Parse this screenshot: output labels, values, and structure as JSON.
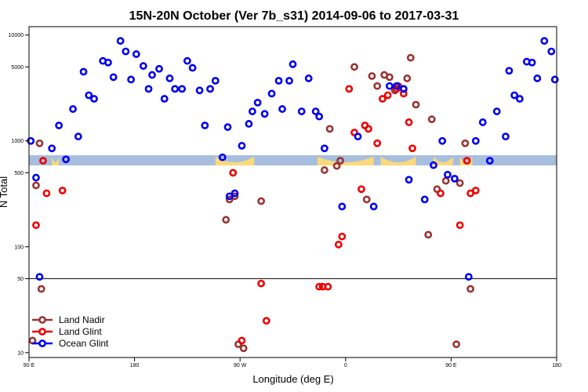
{
  "chart_data": {
    "type": "scatter",
    "title": "15N-20N October (Ver 7b_s31)   2014-09-06 to 2017-03-31",
    "xlabel": "Longitude (deg E)",
    "ylabel": "N Total",
    "y_scale": "log",
    "xlim": [
      -180,
      120
    ],
    "ylim": [
      9,
      12000
    ],
    "x_ticks": [
      {
        "value": -180,
        "label": "90 E"
      },
      {
        "value": -120,
        "label": "180"
      },
      {
        "value": -60,
        "label": "90 W"
      },
      {
        "value": 0,
        "label": "0"
      },
      {
        "value": 60,
        "label": "90 E"
      },
      {
        "value": 120,
        "label": "180"
      }
    ],
    "y_ticks": [
      {
        "value": 10,
        "label": "10"
      },
      {
        "value": 50,
        "label": "50"
      },
      {
        "value": 100,
        "label": "100"
      },
      {
        "value": 500,
        "label": "500"
      },
      {
        "value": 1000,
        "label": "1000"
      },
      {
        "value": 5000,
        "label": "5000"
      },
      {
        "value": 10000,
        "label": "10000"
      }
    ],
    "reference_line": 50,
    "legend_position": "bottom-left",
    "series": [
      {
        "name": "Land Nadir",
        "color": "#993333",
        "points": [
          [
            -178,
            13
          ],
          [
            -176,
            380
          ],
          [
            -174,
            950
          ],
          [
            -173,
            40
          ],
          [
            -68,
            180
          ],
          [
            -66,
            280
          ],
          [
            -63,
            300
          ],
          [
            -61,
            12
          ],
          [
            -58,
            11
          ],
          [
            -48,
            270
          ],
          [
            -12,
            530
          ],
          [
            -9,
            1300
          ],
          [
            -5,
            580
          ],
          [
            -3,
            650
          ],
          [
            5,
            5000
          ],
          [
            12,
            280
          ],
          [
            15,
            4100
          ],
          [
            18,
            3300
          ],
          [
            22,
            4200
          ],
          [
            25,
            4000
          ],
          [
            28,
            3000
          ],
          [
            30,
            3300
          ],
          [
            33,
            3100
          ],
          [
            35,
            3900
          ],
          [
            37,
            6100
          ],
          [
            40,
            2200
          ],
          [
            47,
            130
          ],
          [
            49,
            1600
          ],
          [
            52,
            350
          ],
          [
            57,
            420
          ],
          [
            63,
            12
          ],
          [
            65,
            400
          ],
          [
            68,
            950
          ],
          [
            71,
            40
          ]
        ]
      },
      {
        "name": "Land Glint",
        "color": "#ee0000",
        "points": [
          [
            -176,
            160
          ],
          [
            -172,
            650
          ],
          [
            -170,
            320
          ],
          [
            -161,
            340
          ],
          [
            -64,
            500
          ],
          [
            -59,
            13
          ],
          [
            -48,
            45
          ],
          [
            -45,
            20
          ],
          [
            -15,
            42
          ],
          [
            -13,
            42
          ],
          [
            -10,
            42
          ],
          [
            -4,
            105
          ],
          [
            -2,
            125
          ],
          [
            2,
            3100
          ],
          [
            5,
            1200
          ],
          [
            9,
            350
          ],
          [
            11,
            1400
          ],
          [
            13,
            1300
          ],
          [
            18,
            950
          ],
          [
            21,
            2500
          ],
          [
            24,
            2700
          ],
          [
            29,
            3100
          ],
          [
            33,
            2800
          ],
          [
            36,
            1500
          ],
          [
            38,
            850
          ],
          [
            54,
            320
          ],
          [
            65,
            160
          ],
          [
            69,
            650
          ],
          [
            71,
            320
          ],
          [
            74,
            340
          ]
        ]
      },
      {
        "name": "Ocean Glint",
        "color": "#0000ee",
        "points": [
          [
            -179,
            1000
          ],
          [
            -176,
            450
          ],
          [
            -174,
            52
          ],
          [
            -167,
            850
          ],
          [
            -163,
            1400
          ],
          [
            -159,
            670
          ],
          [
            -155,
            2000
          ],
          [
            -152,
            1100
          ],
          [
            -149,
            4500
          ],
          [
            -146,
            2700
          ],
          [
            -143,
            2500
          ],
          [
            -138,
            5700
          ],
          [
            -135,
            5500
          ],
          [
            -132,
            4000
          ],
          [
            -128,
            8800
          ],
          [
            -125,
            7000
          ],
          [
            -122,
            3800
          ],
          [
            -119,
            6600
          ],
          [
            -115,
            5100
          ],
          [
            -112,
            3100
          ],
          [
            -110,
            4200
          ],
          [
            -106,
            4800
          ],
          [
            -103,
            2500
          ],
          [
            -100,
            3900
          ],
          [
            -97,
            3100
          ],
          [
            -93,
            3100
          ],
          [
            -90,
            5700
          ],
          [
            -87,
            4900
          ],
          [
            -83,
            3000
          ],
          [
            -80,
            1400
          ],
          [
            -77,
            3100
          ],
          [
            -74,
            3700
          ],
          [
            -70,
            700
          ],
          [
            -67,
            1350
          ],
          [
            -66,
            300
          ],
          [
            -63,
            320
          ],
          [
            -59,
            900
          ],
          [
            -55,
            1450
          ],
          [
            -53,
            1900
          ],
          [
            -50,
            2300
          ],
          [
            -46,
            1800
          ],
          [
            -42,
            2800
          ],
          [
            -38,
            3700
          ],
          [
            -36,
            2000
          ],
          [
            -32,
            3700
          ],
          [
            -30,
            5300
          ],
          [
            -25,
            1900
          ],
          [
            -21,
            3900
          ],
          [
            -17,
            1900
          ],
          [
            -15,
            1700
          ],
          [
            -12,
            850
          ],
          [
            -2,
            240
          ],
          [
            7,
            1100
          ],
          [
            16,
            240
          ],
          [
            25,
            3300
          ],
          [
            29,
            3300
          ],
          [
            33,
            3100
          ],
          [
            36,
            430
          ],
          [
            45,
            280
          ],
          [
            50,
            590
          ],
          [
            55,
            1000
          ],
          [
            58,
            480
          ],
          [
            62,
            440
          ],
          [
            70,
            52
          ],
          [
            74,
            1000
          ],
          [
            78,
            1500
          ],
          [
            82,
            650
          ],
          [
            86,
            1900
          ],
          [
            91,
            1100
          ],
          [
            93,
            4600
          ],
          [
            96,
            2700
          ],
          [
            99,
            2500
          ],
          [
            103,
            5600
          ],
          [
            106,
            5500
          ],
          [
            109,
            3900
          ],
          [
            113,
            8800
          ],
          [
            117,
            7000
          ],
          [
            119,
            3800
          ]
        ]
      }
    ]
  }
}
